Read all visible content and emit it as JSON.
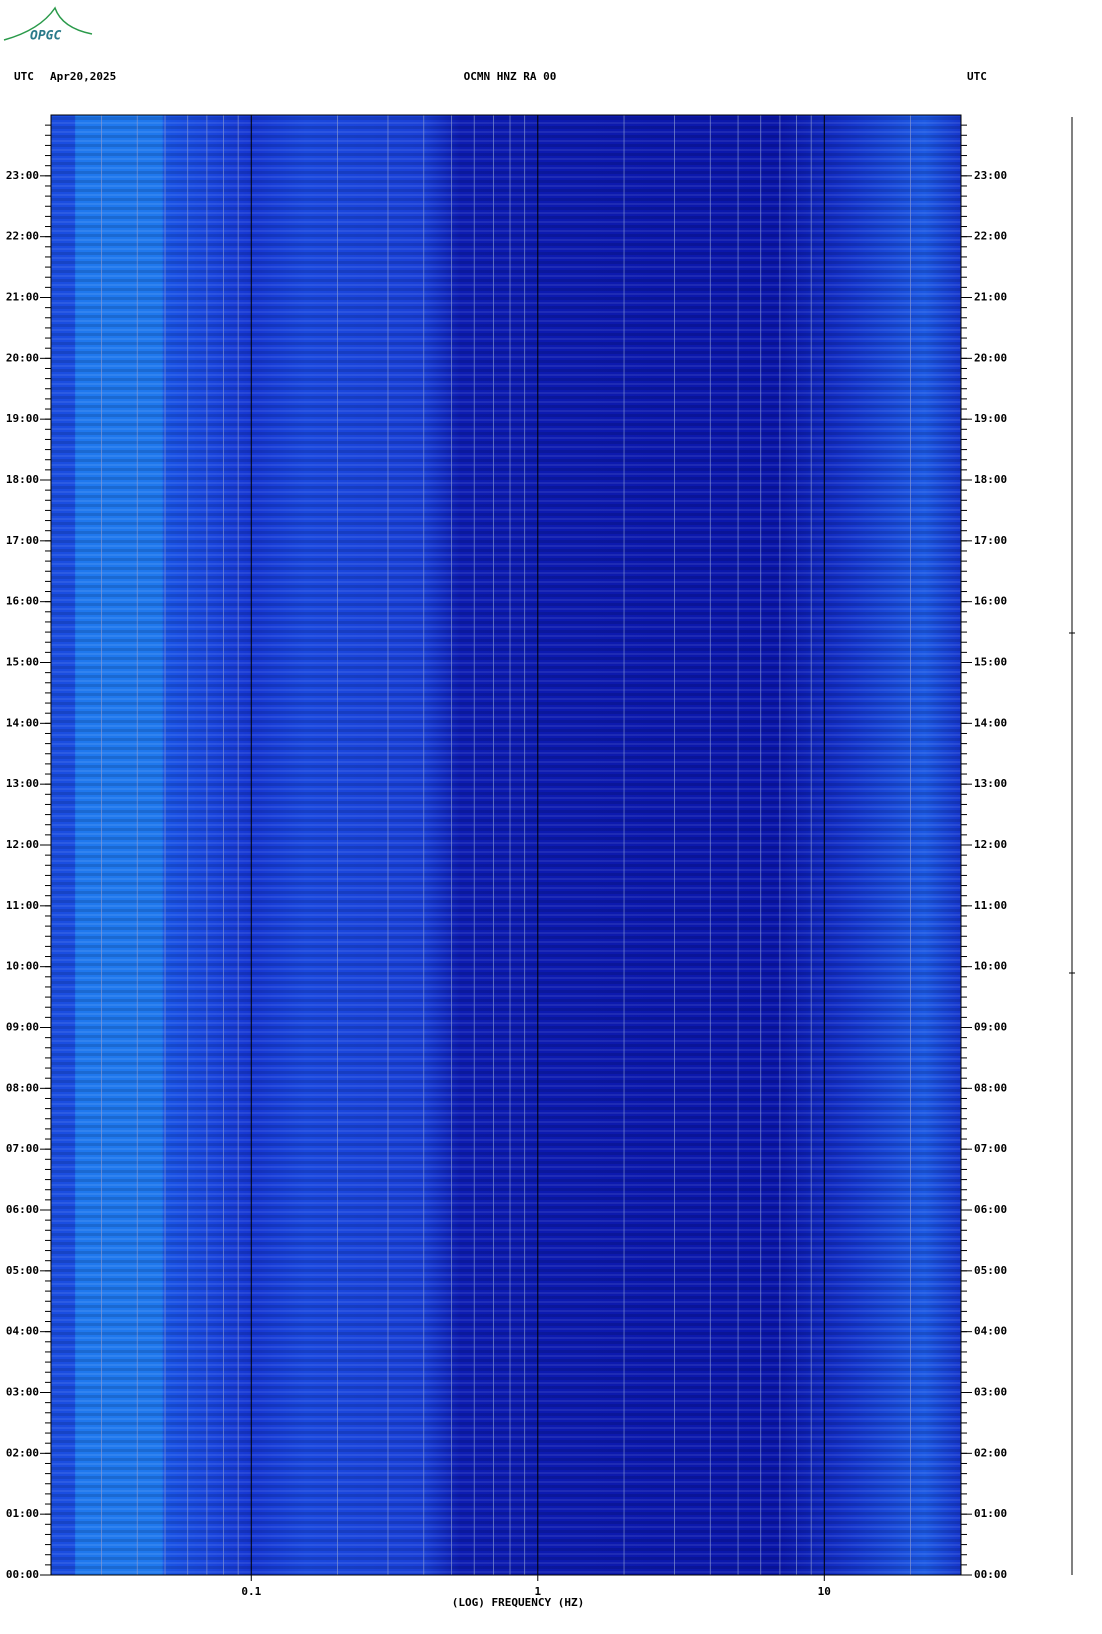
{
  "logo": "OPGC",
  "chart_data": {
    "type": "spectrogram",
    "title": "OCMN HNZ RA 00",
    "left_zone": "UTC",
    "date": "Apr20,2025",
    "right_zone": "UTC",
    "xlabel": "(LOG) FREQUENCY (HZ)",
    "xscale": "log",
    "xlim": [
      0.02,
      30
    ],
    "xticks": [
      0.1,
      1,
      10
    ],
    "ylim": [
      0,
      24
    ],
    "yticks": [
      {
        "value": 0,
        "label": "00:00"
      },
      {
        "value": 1,
        "label": "01:00"
      },
      {
        "value": 2,
        "label": "02:00"
      },
      {
        "value": 3,
        "label": "03:00"
      },
      {
        "value": 4,
        "label": "04:00"
      },
      {
        "value": 5,
        "label": "05:00"
      },
      {
        "value": 6,
        "label": "06:00"
      },
      {
        "value": 7,
        "label": "07:00"
      },
      {
        "value": 8,
        "label": "08:00"
      },
      {
        "value": 9,
        "label": "09:00"
      },
      {
        "value": 10,
        "label": "10:00"
      },
      {
        "value": 11,
        "label": "11:00"
      },
      {
        "value": 12,
        "label": "12:00"
      },
      {
        "value": 13,
        "label": "13:00"
      },
      {
        "value": 14,
        "label": "14:00"
      },
      {
        "value": 15,
        "label": "15:00"
      },
      {
        "value": 16,
        "label": "16:00"
      },
      {
        "value": 17,
        "label": "17:00"
      },
      {
        "value": 18,
        "label": "18:00"
      },
      {
        "value": 19,
        "label": "19:00"
      },
      {
        "value": 20,
        "label": "20:00"
      },
      {
        "value": 21,
        "label": "21:00"
      },
      {
        "value": 22,
        "label": "22:00"
      },
      {
        "value": 23,
        "label": "23:00"
      }
    ],
    "grid": true
  }
}
